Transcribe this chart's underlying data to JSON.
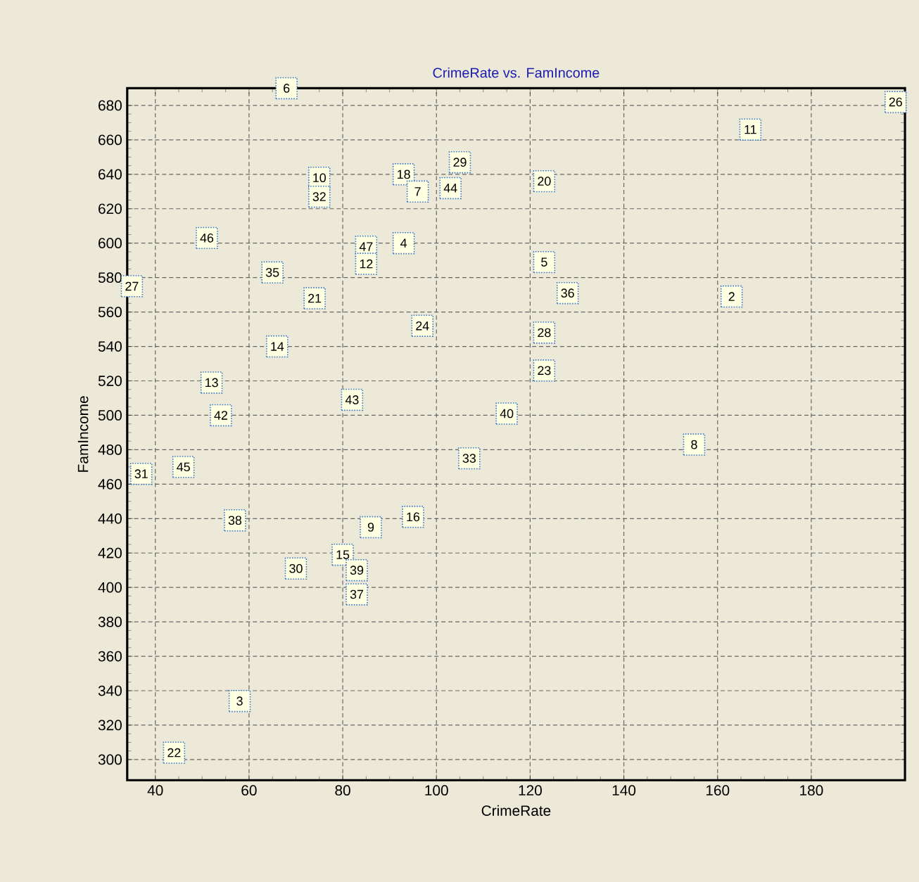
{
  "chart_data": {
    "type": "scatter",
    "title": "CrimeRate vs. FamIncome",
    "xlabel": "CrimeRate",
    "ylabel": "FamIncome",
    "xlim": [
      34,
      200
    ],
    "ylim": [
      288,
      690
    ],
    "xticks": [
      40,
      60,
      80,
      100,
      120,
      140,
      160,
      180
    ],
    "yticks": [
      300,
      320,
      340,
      360,
      380,
      400,
      420,
      440,
      460,
      480,
      500,
      520,
      540,
      560,
      580,
      600,
      620,
      640,
      660,
      680
    ],
    "grid": true,
    "marker": "square",
    "series": [
      {
        "color": "#3c78c8",
        "x": [
          68,
          75,
          75,
          93,
          96,
          105,
          103,
          51,
          85,
          85,
          93,
          65,
          35,
          74,
          97,
          66,
          52,
          198,
          167,
          123,
          123,
          128,
          163,
          123,
          123,
          82,
          54,
          115,
          107,
          37,
          46,
          57,
          95,
          86,
          80,
          70,
          83,
          83,
          58,
          44,
          155
        ],
        "values": [
          690,
          638,
          627,
          640,
          630,
          647,
          632,
          603,
          598,
          588,
          600,
          583,
          575,
          568,
          552,
          540,
          519,
          682,
          666,
          636,
          589,
          571,
          569,
          548,
          526,
          509,
          500,
          501,
          475,
          466,
          470,
          439,
          441,
          435,
          419,
          411,
          410,
          396,
          334,
          304,
          483
        ]
      }
    ],
    "annotations": [
      {
        "text": "6",
        "x": 68,
        "y": 690
      },
      {
        "text": "10",
        "x": 75,
        "y": 638
      },
      {
        "text": "32",
        "x": 75,
        "y": 627
      },
      {
        "text": "18",
        "x": 93,
        "y": 640
      },
      {
        "text": "7",
        "x": 96,
        "y": 630
      },
      {
        "text": "29",
        "x": 105,
        "y": 647
      },
      {
        "text": "44",
        "x": 103,
        "y": 632
      },
      {
        "text": "46",
        "x": 51,
        "y": 603
      },
      {
        "text": "47",
        "x": 85,
        "y": 598
      },
      {
        "text": "12",
        "x": 85,
        "y": 588
      },
      {
        "text": "4",
        "x": 93,
        "y": 600
      },
      {
        "text": "35",
        "x": 65,
        "y": 583
      },
      {
        "text": "27",
        "x": 35,
        "y": 575
      },
      {
        "text": "21",
        "x": 74,
        "y": 568
      },
      {
        "text": "24",
        "x": 97,
        "y": 552
      },
      {
        "text": "14",
        "x": 66,
        "y": 540
      },
      {
        "text": "13",
        "x": 52,
        "y": 519
      },
      {
        "text": "26",
        "x": 198,
        "y": 682
      },
      {
        "text": "11",
        "x": 167,
        "y": 666
      },
      {
        "text": "20",
        "x": 123,
        "y": 636
      },
      {
        "text": "5",
        "x": 123,
        "y": 589
      },
      {
        "text": "36",
        "x": 128,
        "y": 571
      },
      {
        "text": "2",
        "x": 163,
        "y": 569
      },
      {
        "text": "28",
        "x": 123,
        "y": 548
      },
      {
        "text": "23",
        "x": 123,
        "y": 526
      },
      {
        "text": "43",
        "x": 82,
        "y": 509
      },
      {
        "text": "42",
        "x": 54,
        "y": 500
      },
      {
        "text": "40",
        "x": 115,
        "y": 501
      },
      {
        "text": "33",
        "x": 107,
        "y": 475
      },
      {
        "text": "31",
        "x": 37,
        "y": 466
      },
      {
        "text": "45",
        "x": 46,
        "y": 470
      },
      {
        "text": "38",
        "x": 57,
        "y": 439
      },
      {
        "text": "16",
        "x": 95,
        "y": 441
      },
      {
        "text": "9",
        "x": 86,
        "y": 435
      },
      {
        "text": "15",
        "x": 80,
        "y": 419
      },
      {
        "text": "30",
        "x": 70,
        "y": 411
      },
      {
        "text": "39",
        "x": 83,
        "y": 410
      },
      {
        "text": "37",
        "x": 83,
        "y": 396
      },
      {
        "text": "3",
        "x": 58,
        "y": 334
      },
      {
        "text": "22",
        "x": 44,
        "y": 304
      },
      {
        "text": "8",
        "x": 155,
        "y": 483
      }
    ]
  }
}
